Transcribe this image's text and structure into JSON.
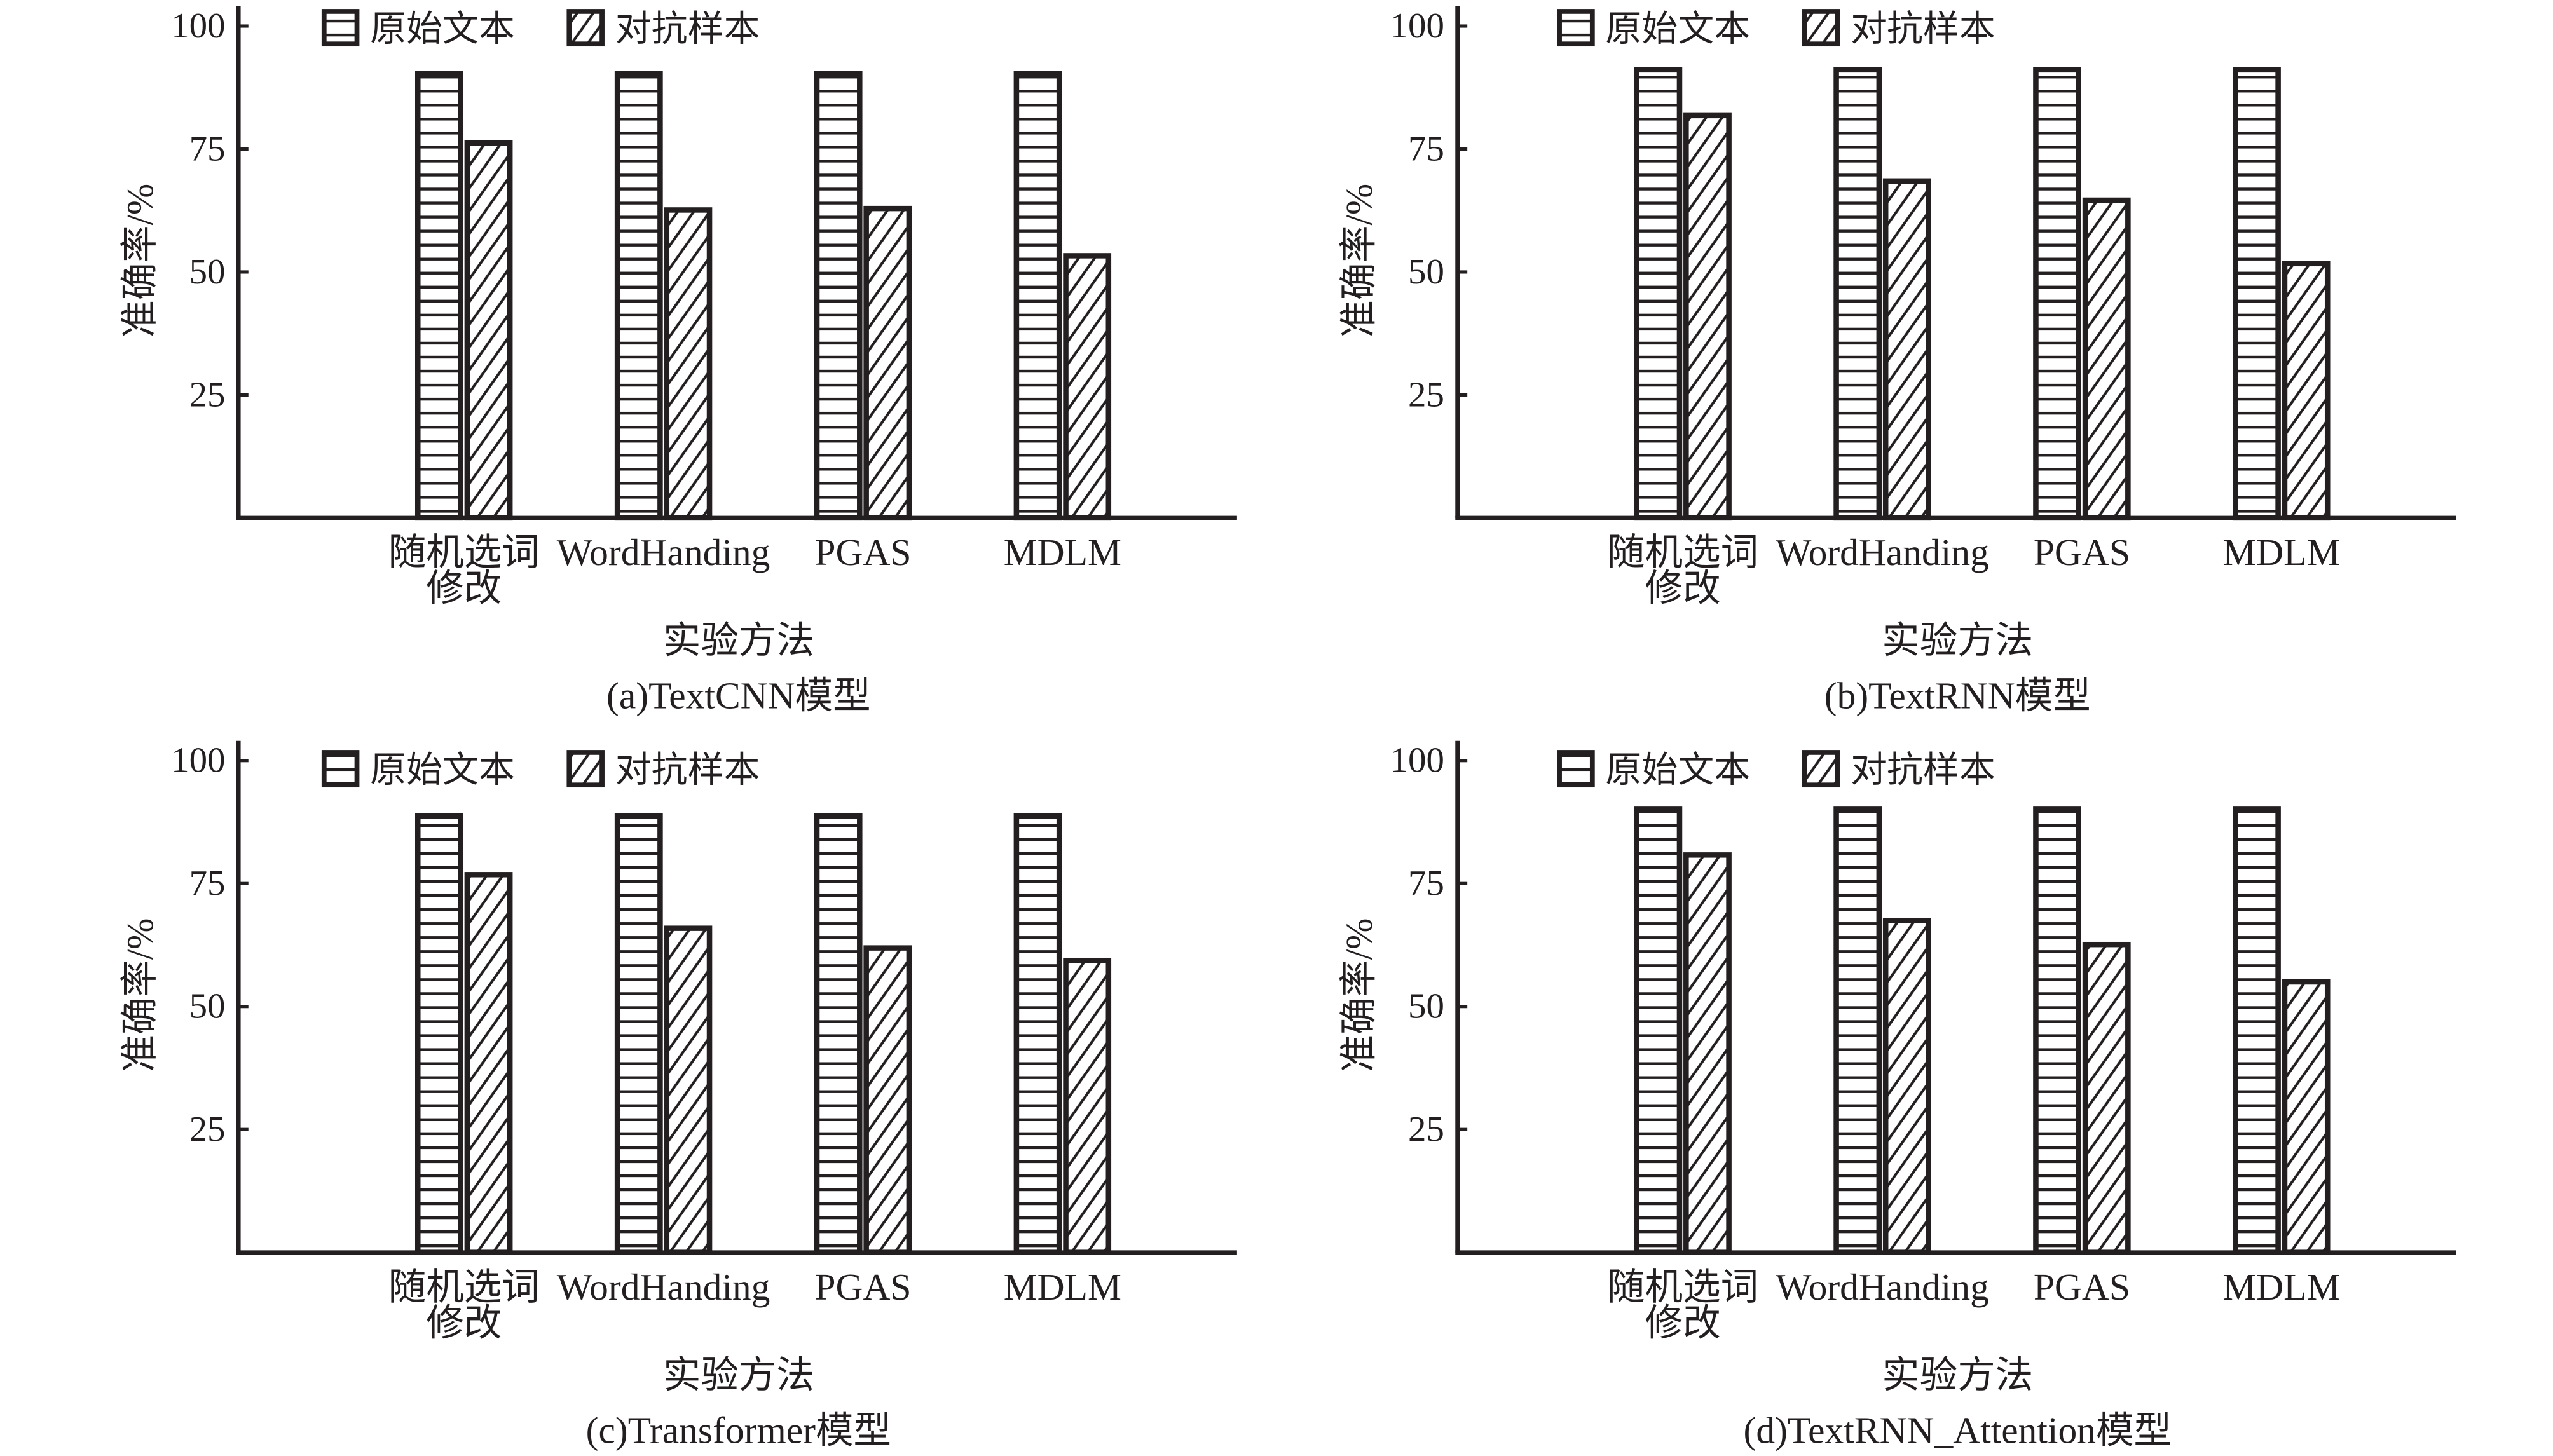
{
  "colors": {
    "ink": "#231f20",
    "background": "#ffffff"
  },
  "chart_data": [
    {
      "type": "bar",
      "title": "(a)TextCNN模型",
      "xlabel": "实验方法",
      "ylabel": "准确率/%",
      "categories": [
        "随机选词修改",
        "WordHanding",
        "PGAS",
        "MDLM"
      ],
      "series": [
        {
          "name": "原始文本",
          "pattern": "horizontal-lines",
          "values": [
            90.4,
            90.4,
            90.4,
            90.4
          ]
        },
        {
          "name": "对抗样本",
          "pattern": "diagonal-lines",
          "values": [
            76.2,
            62.6,
            62.9,
            53.3
          ]
        }
      ],
      "yticks": [
        25,
        50,
        75,
        100
      ],
      "ylim": [
        0,
        104
      ],
      "grid": false,
      "legend": "top-left"
    },
    {
      "type": "bar",
      "title": "(b)TextRNN模型",
      "xlabel": "实验方法",
      "ylabel": "准确率/%",
      "categories": [
        "随机选词修改",
        "WordHanding",
        "PGAS",
        "MDLM"
      ],
      "series": [
        {
          "name": "原始文本",
          "pattern": "horizontal-lines",
          "values": [
            91.1,
            91.1,
            91.1,
            91.1
          ]
        },
        {
          "name": "对抗样本",
          "pattern": "diagonal-lines",
          "values": [
            81.8,
            68.5,
            64.6,
            51.7
          ]
        }
      ],
      "yticks": [
        25,
        50,
        75,
        100
      ],
      "ylim": [
        0,
        104
      ],
      "grid": false,
      "legend": "top-left"
    },
    {
      "type": "bar",
      "title": "(c)Transformer模型",
      "xlabel": "实验方法",
      "ylabel": "准确率/%",
      "categories": [
        "随机选词修改",
        "WordHanding",
        "PGAS",
        "MDLM"
      ],
      "series": [
        {
          "name": "原始文本",
          "pattern": "horizontal-lines",
          "values": [
            88.7,
            88.7,
            88.7,
            88.7
          ]
        },
        {
          "name": "对抗样本",
          "pattern": "diagonal-lines",
          "values": [
            76.8,
            65.9,
            61.9,
            59.3
          ]
        }
      ],
      "yticks": [
        25,
        50,
        75,
        100
      ],
      "ylim": [
        0,
        104
      ],
      "grid": false,
      "legend": "top-left"
    },
    {
      "type": "bar",
      "title": "(d)TextRNN_Attention模型",
      "xlabel": "实验方法",
      "ylabel": "准确率/%",
      "categories": [
        "随机选词修改",
        "WordHanding",
        "PGAS",
        "MDLM"
      ],
      "series": [
        {
          "name": "原始文本",
          "pattern": "horizontal-lines",
          "values": [
            90.1,
            90.1,
            90.1,
            90.1
          ]
        },
        {
          "name": "对抗样本",
          "pattern": "diagonal-lines",
          "values": [
            80.8,
            67.5,
            62.6,
            55.0
          ]
        }
      ],
      "yticks": [
        25,
        50,
        75,
        100
      ],
      "ylim": [
        0,
        104
      ],
      "grid": false,
      "legend": "top-left"
    }
  ]
}
